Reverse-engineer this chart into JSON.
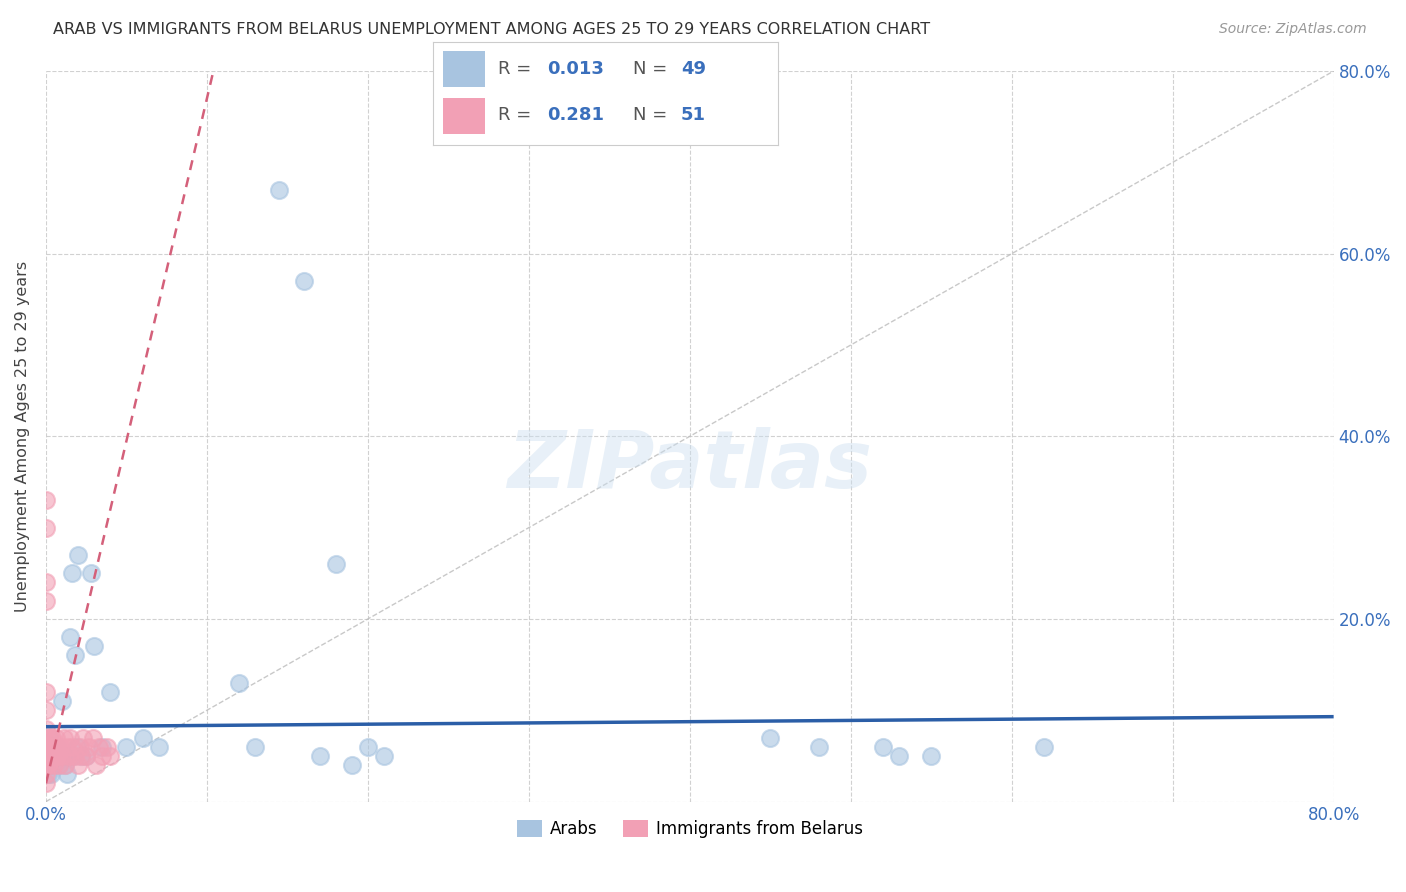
{
  "title": "ARAB VS IMMIGRANTS FROM BELARUS UNEMPLOYMENT AMONG AGES 25 TO 29 YEARS CORRELATION CHART",
  "source": "Source: ZipAtlas.com",
  "ylabel": "Unemployment Among Ages 25 to 29 years",
  "xlim": [
    0.0,
    0.8
  ],
  "ylim": [
    0.0,
    0.8
  ],
  "xticks": [
    0.0,
    0.1,
    0.2,
    0.3,
    0.4,
    0.5,
    0.6,
    0.7,
    0.8
  ],
  "yticks": [
    0.0,
    0.2,
    0.4,
    0.6,
    0.8
  ],
  "xtick_labels": [
    "0.0%",
    "",
    "",
    "",
    "",
    "",
    "",
    "",
    "80.0%"
  ],
  "ytick_labels_right": [
    "",
    "20.0%",
    "40.0%",
    "60.0%",
    "80.0%"
  ],
  "arab_color": "#a8c4e0",
  "belarus_color": "#f2a0b5",
  "arab_R": "0.013",
  "arab_N": "49",
  "belarus_R": "0.281",
  "belarus_N": "51",
  "trend_line_color_arab": "#2b5ea7",
  "trend_line_color_belarus": "#d4607a",
  "watermark": "ZIPatlas",
  "background_color": "#ffffff",
  "grid_color": "#cccccc",
  "arab_trend_y_start": 0.082,
  "arab_trend_y_end": 0.093,
  "diagonal_color": "#bbbbbb",
  "legend_text_color": "#3a6fbc",
  "arab_scatter_x": [
    0.0,
    0.0,
    0.001,
    0.001,
    0.002,
    0.002,
    0.003,
    0.003,
    0.004,
    0.005,
    0.006,
    0.007,
    0.008,
    0.009,
    0.01,
    0.011,
    0.012,
    0.013,
    0.014,
    0.015,
    0.016,
    0.017,
    0.018,
    0.019,
    0.02,
    0.022,
    0.025,
    0.028,
    0.03,
    0.035,
    0.04,
    0.05,
    0.06,
    0.07,
    0.12,
    0.13,
    0.17,
    0.19,
    0.52,
    0.53,
    0.55,
    0.62,
    0.145,
    0.16,
    0.18,
    0.2,
    0.21,
    0.45,
    0.48
  ],
  "arab_scatter_y": [
    0.06,
    0.04,
    0.05,
    0.03,
    0.07,
    0.04,
    0.05,
    0.03,
    0.04,
    0.06,
    0.05,
    0.06,
    0.04,
    0.05,
    0.11,
    0.05,
    0.04,
    0.03,
    0.05,
    0.18,
    0.25,
    0.05,
    0.16,
    0.06,
    0.27,
    0.05,
    0.05,
    0.25,
    0.17,
    0.06,
    0.12,
    0.06,
    0.07,
    0.06,
    0.13,
    0.06,
    0.05,
    0.04,
    0.06,
    0.05,
    0.05,
    0.06,
    0.67,
    0.57,
    0.26,
    0.06,
    0.05,
    0.07,
    0.06
  ],
  "belarus_scatter_x": [
    0.0,
    0.0,
    0.0,
    0.0,
    0.0,
    0.0,
    0.0,
    0.0,
    0.0,
    0.0,
    0.001,
    0.001,
    0.001,
    0.001,
    0.002,
    0.002,
    0.003,
    0.003,
    0.004,
    0.004,
    0.005,
    0.005,
    0.006,
    0.006,
    0.007,
    0.007,
    0.008,
    0.009,
    0.01,
    0.011,
    0.012,
    0.013,
    0.014,
    0.015,
    0.016,
    0.018,
    0.02,
    0.021,
    0.022,
    0.023,
    0.025,
    0.027,
    0.029,
    0.031,
    0.033,
    0.035,
    0.038,
    0.04,
    0.0,
    0.0,
    0.001
  ],
  "belarus_scatter_y": [
    0.33,
    0.3,
    0.24,
    0.22,
    0.12,
    0.1,
    0.08,
    0.06,
    0.05,
    0.04,
    0.06,
    0.05,
    0.07,
    0.04,
    0.06,
    0.05,
    0.07,
    0.06,
    0.05,
    0.07,
    0.04,
    0.06,
    0.05,
    0.07,
    0.06,
    0.05,
    0.04,
    0.06,
    0.05,
    0.07,
    0.04,
    0.06,
    0.05,
    0.07,
    0.06,
    0.05,
    0.04,
    0.06,
    0.05,
    0.07,
    0.05,
    0.06,
    0.07,
    0.04,
    0.06,
    0.05,
    0.06,
    0.05,
    0.03,
    0.02,
    0.04
  ]
}
